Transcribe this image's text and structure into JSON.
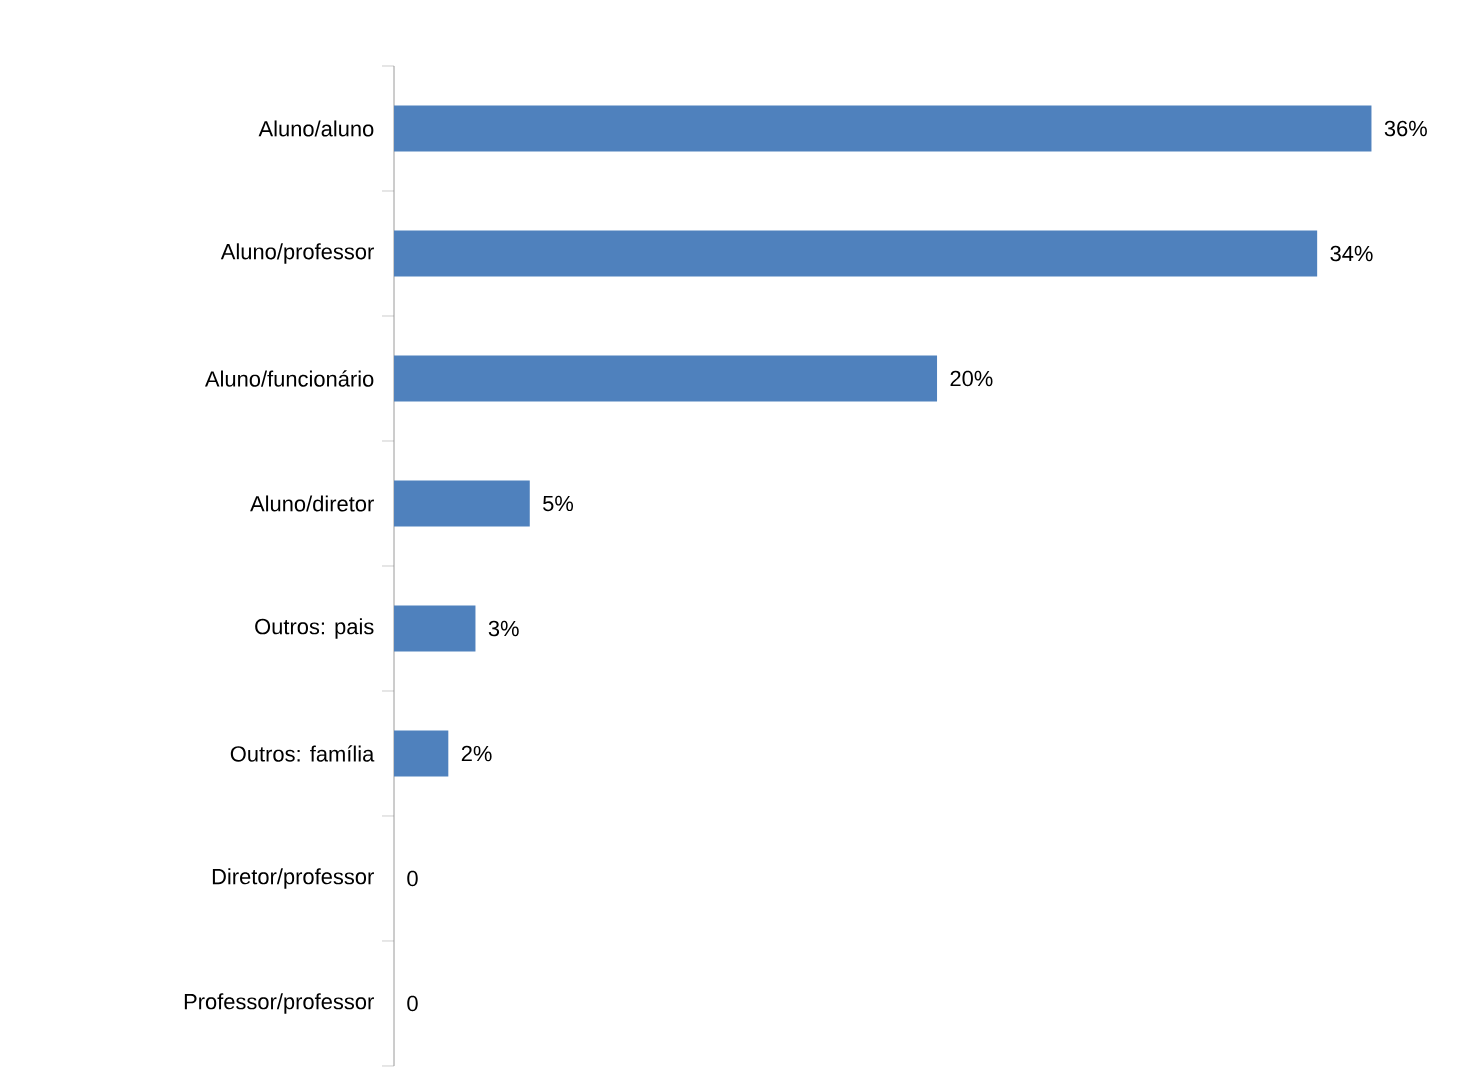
{
  "chart_data": {
    "type": "bar",
    "orientation": "horizontal",
    "color": "#4f81bd",
    "categories": [
      "Aluno/aluno",
      "Aluno/professor",
      "Aluno/funcionário",
      "Aluno/diretor",
      "Outros: pais",
      "Outros: família",
      "Diretor/professor",
      "Professor/professor"
    ],
    "values": [
      36,
      34,
      20,
      5,
      3,
      2,
      0,
      0
    ],
    "value_labels": [
      "36%",
      "34%",
      "20%",
      "5%",
      "3%",
      "2%",
      "0",
      "0"
    ]
  }
}
